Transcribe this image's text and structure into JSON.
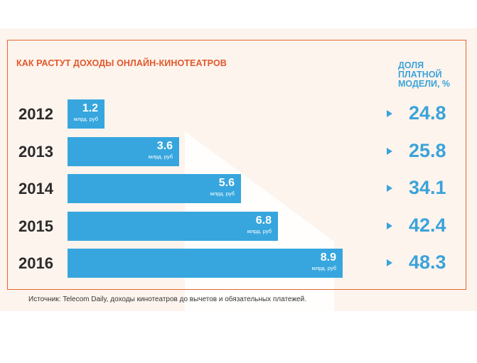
{
  "header": {
    "title": "КАК РАСТУТ ДОХОДЫ ОНЛАЙН-КИНОТЕАТРОВ",
    "share_heading": "ДОЛЯ ПЛАТНОЙ МОДЕЛИ, %"
  },
  "footer": {
    "source": "Источник: Telecom Daily, доходы кинотеатров до вычетов и обязательных платежей."
  },
  "colors": {
    "title": "#e2582a",
    "frame": "#e8652c",
    "bar": "#37a6de",
    "share": "#3ba3d9",
    "year": "#2b2b2b"
  },
  "chart_data": {
    "type": "bar",
    "orientation": "horizontal",
    "title": "КАК РАСТУТ ДОХОДЫ ОНЛАЙН-КИНОТЕАТРОВ",
    "categories": [
      "2012",
      "2013",
      "2014",
      "2015",
      "2016"
    ],
    "values": [
      1.2,
      3.6,
      5.6,
      6.8,
      8.9
    ],
    "value_labels": [
      "1.2",
      "3.6",
      "5.6",
      "6.8",
      "8.9"
    ],
    "unit_label": "млрд. руб",
    "xlim": [
      0,
      10.5
    ],
    "secondary": {
      "heading": "ДОЛЯ ПЛАТНОЙ МОДЕЛИ, %",
      "values": [
        24.8,
        25.8,
        34.1,
        42.4,
        48.3
      ],
      "labels": [
        "24.8",
        "25.8",
        "34.1",
        "42.4",
        "48.3"
      ]
    },
    "grid": false,
    "legend": "none"
  }
}
